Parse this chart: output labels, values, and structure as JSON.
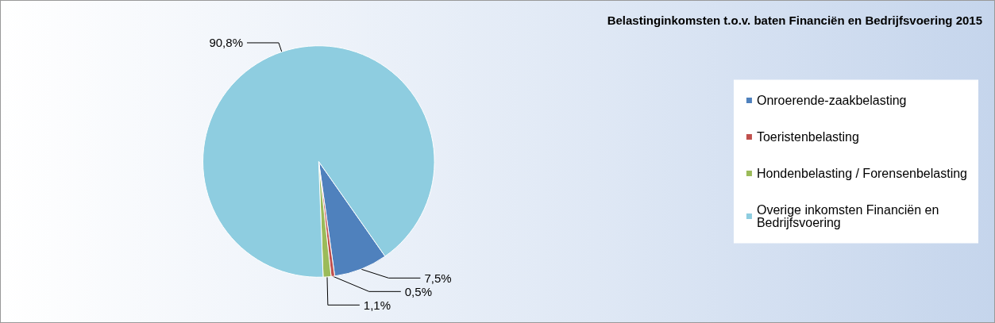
{
  "chart_data": {
    "type": "pie",
    "title": "Belastinginkomsten t.o.v. baten Financiën en Bedrijfsvoering 2015",
    "categories": [
      "Onroerende-zaakbelasting",
      "Toeristenbelasting",
      "Hondenbelasting / Forensenbelasting",
      "Overige inkomsten Financiën en Bedrijfsvoering"
    ],
    "values": [
      7.5,
      0.5,
      1.1,
      90.8
    ],
    "value_labels": [
      "7,5%",
      "0,5%",
      "1,1%",
      "90,8%"
    ],
    "colors": [
      "#4f81bd",
      "#c0504d",
      "#9bbb59",
      "#8ecde0"
    ],
    "legend": "right"
  }
}
